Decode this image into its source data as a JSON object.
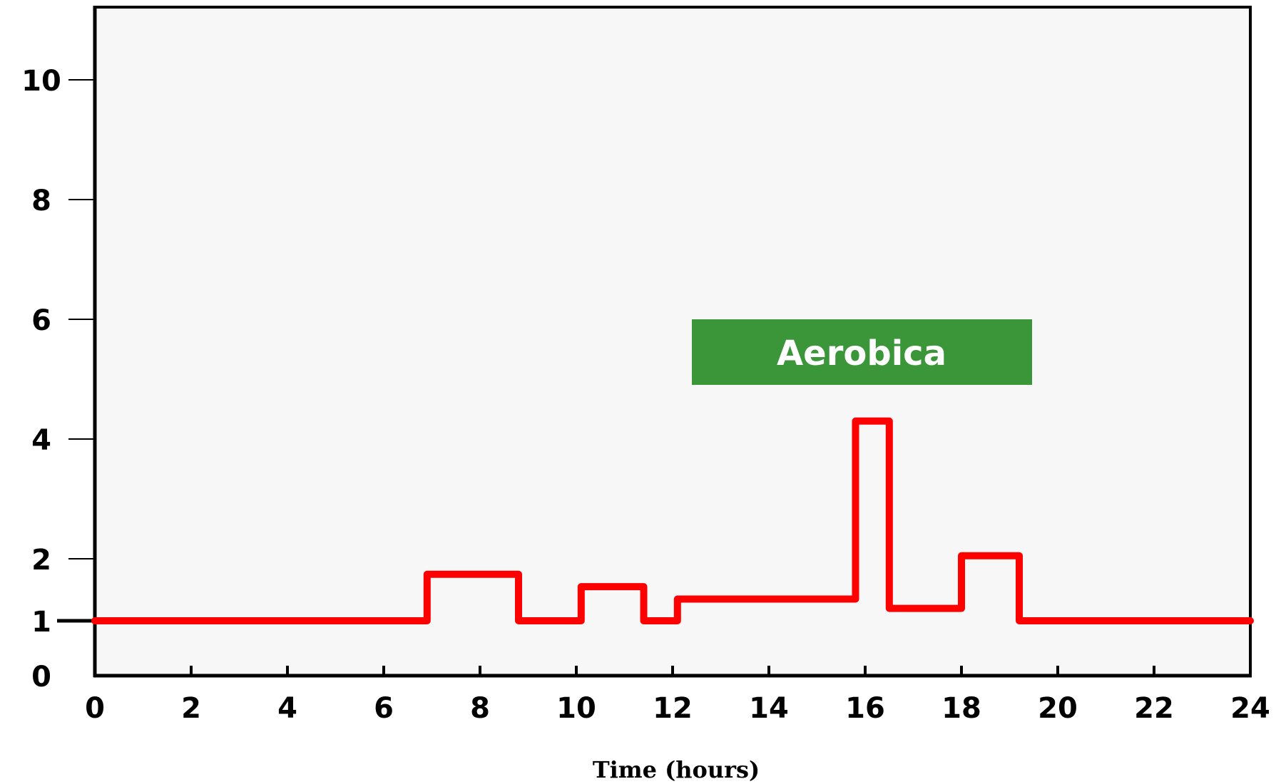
{
  "chart_data": {
    "type": "line",
    "title": "",
    "xlabel": "Time (hours)",
    "ylabel": "",
    "xlim": [
      0,
      24
    ],
    "ylim": [
      0,
      11
    ],
    "x_ticks": [
      "0",
      "2",
      "4",
      "6",
      "8",
      "10",
      "12",
      "14",
      "16",
      "18",
      "20",
      "22",
      "24"
    ],
    "y_ticks": [
      "0",
      "1",
      "2",
      "4",
      "6",
      "8",
      "10"
    ],
    "grid": false,
    "step": true,
    "series": [
      {
        "color": "#ff0000",
        "points": [
          {
            "x": 0,
            "y": 1
          },
          {
            "x": 6.9,
            "y": 1
          },
          {
            "x": 6.9,
            "y": 1.75
          },
          {
            "x": 8.8,
            "y": 1.75
          },
          {
            "x": 8.8,
            "y": 1
          },
          {
            "x": 10.1,
            "y": 1
          },
          {
            "x": 10.1,
            "y": 1.55
          },
          {
            "x": 11.4,
            "y": 1.55
          },
          {
            "x": 11.4,
            "y": 1
          },
          {
            "x": 12.1,
            "y": 1
          },
          {
            "x": 12.1,
            "y": 1.35
          },
          {
            "x": 15.8,
            "y": 1.35
          },
          {
            "x": 15.8,
            "y": 4.3
          },
          {
            "x": 16.5,
            "y": 4.3
          },
          {
            "x": 16.5,
            "y": 1.2
          },
          {
            "x": 18.0,
            "y": 1.2
          },
          {
            "x": 18.0,
            "y": 2.05
          },
          {
            "x": 19.2,
            "y": 2.05
          },
          {
            "x": 19.2,
            "y": 1
          },
          {
            "x": 24,
            "y": 1
          }
        ]
      }
    ],
    "annotations": [
      {
        "text": "Aerobica",
        "color": "#3a9638",
        "text_color": "#ffffff"
      }
    ],
    "background_color": "#f7f7f7"
  }
}
